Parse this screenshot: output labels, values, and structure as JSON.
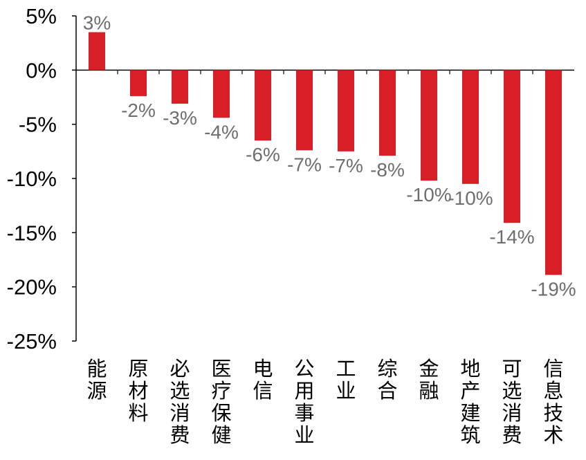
{
  "chart_data": {
    "type": "bar",
    "categories": [
      "能源",
      "原材料",
      "必选消费",
      "医疗保健",
      "电信",
      "公用事业",
      "工业",
      "综合",
      "金融",
      "地产建筑",
      "可选消费",
      "信息技术"
    ],
    "values": [
      3.5,
      -2.4,
      -3.1,
      -4.4,
      -6.5,
      -7.4,
      -7.5,
      -7.9,
      -10.2,
      -10.5,
      -14.1,
      -18.9
    ],
    "data_labels": [
      "3%",
      "-2%",
      "-3%",
      "-4%",
      "-6%",
      "-7%",
      "-7%",
      "-8%",
      "-10%",
      "-10%",
      "-14%",
      "-19%"
    ],
    "yticks": [
      "5%",
      "0%",
      "-5%",
      "-10%",
      "-15%",
      "-20%",
      "-25%"
    ],
    "ylim": [
      -25,
      5
    ],
    "bar_color": "#d81f26",
    "label_color": "#6e6e6e",
    "title": "",
    "xlabel": "",
    "ylabel": "",
    "grid": false
  }
}
